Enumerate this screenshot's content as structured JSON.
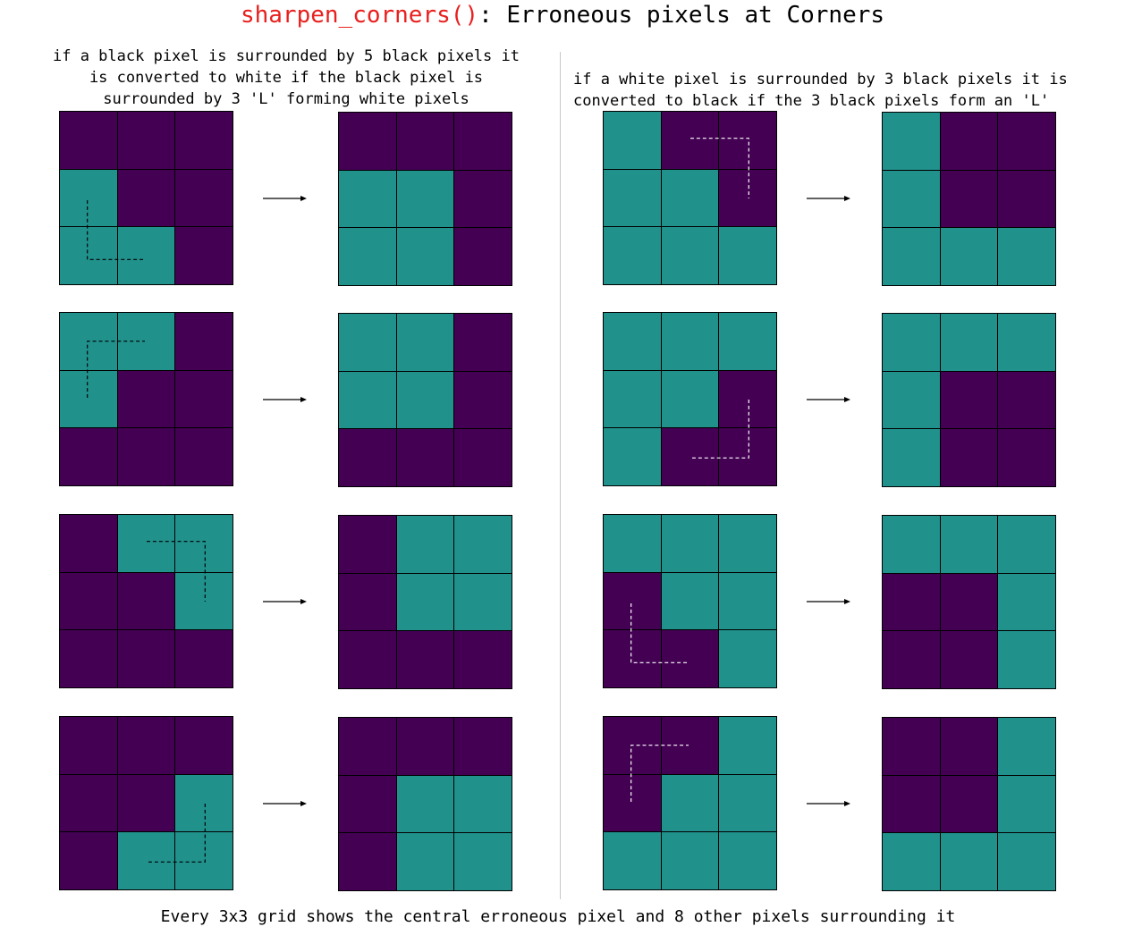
{
  "title": {
    "function_name": "sharpen_corners()",
    "rest": ": Erroneous pixels at Corners"
  },
  "left_caption": "if a black pixel is surrounded by 5 black pixels it\nis converted to white if the black pixel is\nsurrounded by 3 'L' forming white pixels",
  "right_caption": "if a white pixel is surrounded by 3 black pixels it is\nconverted to black if the 3 black pixels form an 'L'",
  "footer": "Every 3x3 grid shows the central erroneous pixel and 8 other pixels surrounding it",
  "colors": {
    "black_pixel": "#440154",
    "white_pixel": "#21918c",
    "title_function": "#e8201e",
    "l_marker_on_white": "#000000",
    "l_marker_on_black": "#ffffff"
  },
  "legend_note": "d = black pixel (purple), t = white pixel (teal)",
  "panels": [
    {
      "side": "left",
      "before": [
        "ddd",
        "tdd",
        "ttd"
      ],
      "after": [
        "ddd",
        "ttd",
        "ttd"
      ],
      "l_marker": "bottom-left"
    },
    {
      "side": "left",
      "before": [
        "ttd",
        "tdd",
        "ddd"
      ],
      "after": [
        "ttd",
        "ttd",
        "ddd"
      ],
      "l_marker": "top-left"
    },
    {
      "side": "left",
      "before": [
        "dtt",
        "ddt",
        "ddd"
      ],
      "after": [
        "dtt",
        "dtt",
        "ddd"
      ],
      "l_marker": "top-right"
    },
    {
      "side": "left",
      "before": [
        "ddd",
        "ddt",
        "dtt"
      ],
      "after": [
        "ddd",
        "dtt",
        "dtt"
      ],
      "l_marker": "bottom-right"
    },
    {
      "side": "right",
      "before": [
        "tdd",
        "ttd",
        "ttt"
      ],
      "after": [
        "tdd",
        "tdd",
        "ttt"
      ],
      "l_marker": "top-right"
    },
    {
      "side": "right",
      "before": [
        "ttt",
        "ttd",
        "tdd"
      ],
      "after": [
        "ttt",
        "tdd",
        "tdd"
      ],
      "l_marker": "bottom-right"
    },
    {
      "side": "right",
      "before": [
        "ttt",
        "dtt",
        "ddt"
      ],
      "after": [
        "ttt",
        "ddt",
        "ddt"
      ],
      "l_marker": "bottom-left"
    },
    {
      "side": "right",
      "before": [
        "ddt",
        "dtt",
        "ttt"
      ],
      "after": [
        "ddt",
        "ddt",
        "ttt"
      ],
      "l_marker": "top-left"
    }
  ]
}
